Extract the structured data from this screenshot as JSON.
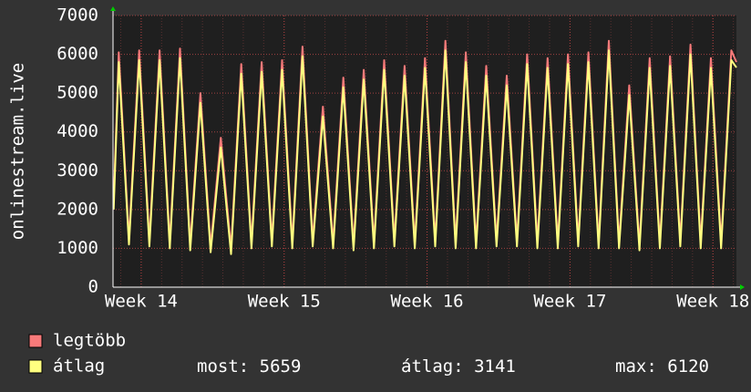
{
  "chart_data": {
    "type": "line",
    "y_label": "onlinestream.live",
    "xlim": [
      -1.38,
      29.15
    ],
    "xticks": [
      {
        "value": 0,
        "label": "Week 14"
      },
      {
        "value": 7,
        "label": "Week 15"
      },
      {
        "value": 14,
        "label": "Week 16"
      },
      {
        "value": 21,
        "label": "Week 17"
      },
      {
        "value": 28,
        "label": "Week 18"
      }
    ],
    "ylim": [
      0,
      7000
    ],
    "yticks": [
      0,
      1000,
      2000,
      3000,
      4000,
      5000,
      6000,
      7000
    ],
    "grid": true,
    "x": [
      -1.35,
      -1.1,
      -0.85,
      -0.6,
      -0.35,
      -0.1,
      0.15,
      0.4,
      0.65,
      0.9,
      1.15,
      1.4,
      1.65,
      1.9,
      2.15,
      2.4,
      2.65,
      2.9,
      3.15,
      3.4,
      3.65,
      3.9,
      4.15,
      4.4,
      4.65,
      4.9,
      5.15,
      5.4,
      5.65,
      5.9,
      6.15,
      6.4,
      6.65,
      6.9,
      7.15,
      7.4,
      7.65,
      7.9,
      8.15,
      8.4,
      8.65,
      8.9,
      9.15,
      9.4,
      9.65,
      9.9,
      10.15,
      10.4,
      10.65,
      10.9,
      11.15,
      11.4,
      11.65,
      11.9,
      12.15,
      12.4,
      12.65,
      12.9,
      13.15,
      13.4,
      13.65,
      13.9,
      14.15,
      14.4,
      14.65,
      14.9,
      15.15,
      15.4,
      15.65,
      15.9,
      16.15,
      16.4,
      16.65,
      16.9,
      17.15,
      17.4,
      17.65,
      17.9,
      18.15,
      18.4,
      18.65,
      18.9,
      19.15,
      19.4,
      19.65,
      19.9,
      20.15,
      20.4,
      20.65,
      20.9,
      21.15,
      21.4,
      21.65,
      21.9,
      22.15,
      22.4,
      22.65,
      22.9,
      23.15,
      23.4,
      23.65,
      23.9,
      24.15,
      24.4,
      24.65,
      24.9,
      25.15,
      25.4,
      25.65,
      25.9,
      26.15,
      26.4,
      26.65,
      26.9,
      27.15,
      27.4,
      27.65,
      27.9,
      28.15,
      28.4,
      28.65,
      28.9,
      29.15
    ],
    "series": [
      {
        "name": "legtöbb",
        "color": "#f87a7a",
        "values": [
          2200,
          6050,
          3650,
          1250,
          3675,
          6100,
          3650,
          1200,
          3650,
          6100,
          3625,
          1150,
          3650,
          6150,
          3625,
          1100,
          3050,
          5000,
          3025,
          1050,
          2450,
          3850,
          2425,
          1000,
          3375,
          5750,
          3450,
          1150,
          3475,
          5800,
          3500,
          1200,
          3525,
          5850,
          3500,
          1150,
          3675,
          6200,
          3700,
          1200,
          2925,
          4650,
          2900,
          1150,
          3275,
          5400,
          3250,
          1100,
          3350,
          5600,
          3375,
          1150,
          3500,
          5850,
          3525,
          1200,
          3450,
          5700,
          3425,
          1150,
          3525,
          5900,
          3550,
          1200,
          3775,
          6350,
          3750,
          1150,
          3600,
          6050,
          3600,
          1150,
          3425,
          5700,
          3450,
          1200,
          3325,
          5450,
          3325,
          1200,
          3600,
          6000,
          3575,
          1150,
          3525,
          5900,
          3525,
          1150,
          3575,
          6000,
          3600,
          1200,
          3625,
          6050,
          3600,
          1150,
          3750,
          6350,
          3750,
          1150,
          3175,
          5200,
          3150,
          1100,
          3500,
          5900,
          3525,
          1150,
          3550,
          5950,
          3575,
          1200,
          3725,
          6250,
          3700,
          1150,
          3525,
          5900,
          3525,
          1150,
          3625,
          6100,
          5800
        ]
      },
      {
        "name": "átlag",
        "color": "#ffff80",
        "values": [
          2000,
          5800,
          3450,
          1100,
          3475,
          5850,
          3450,
          1050,
          3450,
          5850,
          3425,
          1000,
          3450,
          5900,
          3425,
          950,
          2850,
          4750,
          2825,
          900,
          2250,
          3600,
          2225,
          850,
          3175,
          5500,
          3250,
          1000,
          3275,
          5550,
          3300,
          1050,
          3325,
          5600,
          3300,
          1000,
          3475,
          5950,
          3500,
          1050,
          2725,
          4400,
          2700,
          1000,
          3075,
          5150,
          3050,
          950,
          3150,
          5350,
          3175,
          1000,
          3300,
          5600,
          3325,
          1050,
          3250,
          5450,
          3225,
          1000,
          3325,
          5650,
          3350,
          1050,
          3575,
          6100,
          3550,
          1000,
          3400,
          5800,
          3400,
          1000,
          3225,
          5450,
          3250,
          1050,
          3125,
          5200,
          3125,
          1050,
          3400,
          5750,
          3375,
          1000,
          3325,
          5650,
          3325,
          1000,
          3375,
          5750,
          3400,
          1050,
          3425,
          5800,
          3400,
          1000,
          3550,
          6100,
          3550,
          1000,
          2975,
          4950,
          2950,
          950,
          3300,
          5650,
          3325,
          1000,
          3350,
          5700,
          3375,
          1050,
          3525,
          6000,
          3500,
          1000,
          3325,
          5650,
          3325,
          1000,
          3425,
          5850,
          5659
        ]
      }
    ],
    "stats": [
      {
        "label": "most:",
        "value": 5659
      },
      {
        "label": "átlag:",
        "value": 3141
      },
      {
        "label": "max:",
        "value": 6120
      }
    ]
  }
}
